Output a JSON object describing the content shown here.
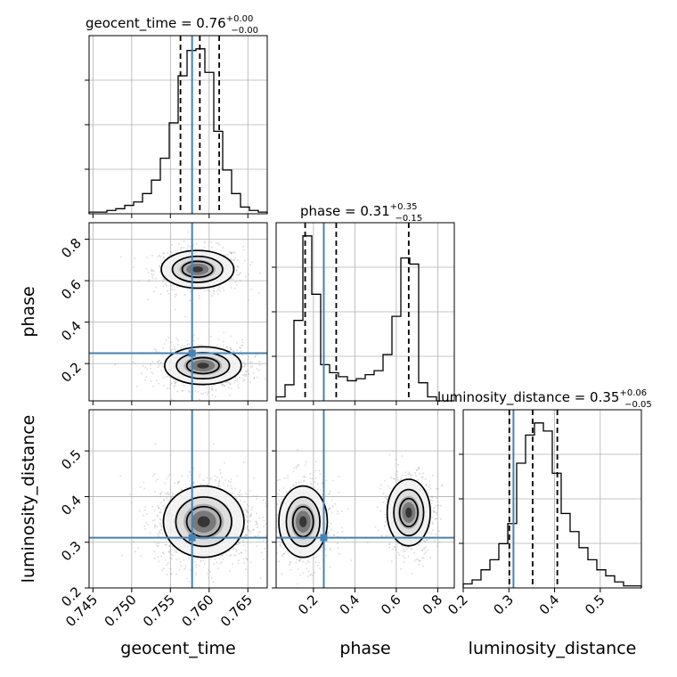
{
  "chart_data": {
    "type": "corner",
    "parameters": [
      {
        "key": "geocent_time",
        "label": "geocent_time",
        "title_prefix": "geocent_time = 0.76",
        "title_sup": "+0.00",
        "title_sub": "−0.00",
        "range": [
          0.7445,
          0.7675
        ],
        "ticks": [
          0.745,
          0.75,
          0.755,
          0.76,
          0.765
        ],
        "tick_labels": [
          "0.745",
          "0.750",
          "0.755",
          "0.760",
          "0.765"
        ],
        "quantiles": [
          0.7563,
          0.7588,
          0.7613
        ],
        "truth": 0.7578,
        "hist_bins": [
          0.7445,
          0.7675
        ],
        "hist_counts": [
          1,
          1,
          2,
          3,
          5,
          7,
          12,
          20,
          33,
          54,
          82,
          97,
          98,
          84,
          49,
          26,
          12,
          4,
          2,
          1
        ]
      },
      {
        "key": "phase",
        "label": "phase",
        "title_prefix": "phase = 0.31",
        "title_sup": "+0.35",
        "title_sub": "−0.15",
        "range": [
          0.02,
          0.88
        ],
        "ticks": [
          0.2,
          0.4,
          0.6,
          0.8
        ],
        "tick_labels": [
          "0.2",
          "0.4",
          "0.6",
          "0.8"
        ],
        "quantiles": [
          0.16,
          0.31,
          0.66
        ],
        "truth": 0.25,
        "hist_bins": [
          0.02,
          0.88
        ],
        "hist_counts": [
          2,
          8,
          40,
          82,
          53,
          18,
          14,
          12,
          10,
          11,
          13,
          15,
          23,
          42,
          71,
          68,
          9,
          2,
          0,
          0
        ]
      },
      {
        "key": "luminosity_distance",
        "label": "luminosity_distance",
        "title_prefix": "luminosity_distance = 0.35",
        "title_sup": "+0.06",
        "title_sub": "−0.05",
        "range": [
          0.2,
          0.59
        ],
        "ticks": [
          0.2,
          0.3,
          0.4,
          0.5
        ],
        "tick_labels": [
          "0.2",
          "0.3",
          "0.4",
          "0.5"
        ],
        "quantiles": [
          0.301,
          0.352,
          0.406
        ],
        "truth": 0.31,
        "hist_bins": [
          0.2,
          0.59
        ],
        "hist_counts": [
          2,
          4,
          9,
          14,
          22,
          32,
          62,
          76,
          82,
          78,
          57,
          37,
          28,
          20,
          14,
          9,
          6,
          3,
          1,
          1
        ]
      }
    ],
    "pairs": [
      {
        "x": "geocent_time",
        "y": "phase",
        "modes": [
          {
            "cx": 0.7585,
            "cy": 0.655,
            "sx": 0.0018,
            "sy": 0.035,
            "w": 0.45
          },
          {
            "cx": 0.7592,
            "cy": 0.19,
            "sx": 0.0019,
            "sy": 0.035,
            "w": 0.55
          }
        ],
        "truth": [
          0.7578,
          0.25
        ]
      },
      {
        "x": "geocent_time",
        "y": "luminosity_distance",
        "modes": [
          {
            "cx": 0.7593,
            "cy": 0.345,
            "sx": 0.002,
            "sy": 0.03,
            "w": 1.0
          }
        ],
        "truth": [
          0.7578,
          0.31
        ]
      },
      {
        "x": "phase",
        "y": "luminosity_distance",
        "modes": [
          {
            "cx": 0.15,
            "cy": 0.345,
            "sx": 0.045,
            "sy": 0.03,
            "w": 0.55
          },
          {
            "cx": 0.66,
            "cy": 0.365,
            "sx": 0.04,
            "sy": 0.028,
            "w": 0.45
          }
        ],
        "truth": [
          0.25,
          0.31
        ]
      }
    ],
    "colors": {
      "truth": "#4682b4",
      "points": "#999999",
      "hist": "#000000"
    },
    "grid": true
  }
}
